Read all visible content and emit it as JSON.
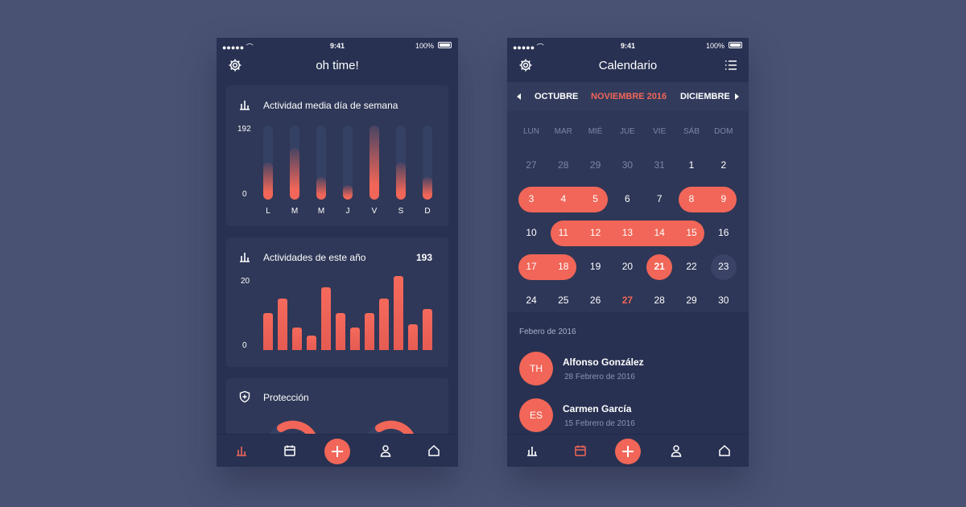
{
  "status": {
    "time": "9:41",
    "battery": "100%"
  },
  "left": {
    "title": "oh time!",
    "weekday_card": {
      "title": "Actividad media día de semana",
      "y_max": "192",
      "y_min": "0",
      "days": [
        "L",
        "M",
        "M",
        "J",
        "V",
        "S",
        "D"
      ],
      "levels": [
        0.5,
        0.7,
        0.3,
        0.2,
        1.0,
        0.5,
        0.3
      ]
    },
    "year_card": {
      "title": "Actividades de este año",
      "count": "193",
      "y_max": "20",
      "y_min": "0",
      "levels": [
        0.5,
        0.7,
        0.3,
        0.2,
        0.85,
        0.5,
        0.3,
        0.5,
        0.7,
        1.0,
        0.35,
        0.55
      ]
    },
    "protection_card": {
      "title": "Protección"
    }
  },
  "right": {
    "title": "Calendario",
    "months": {
      "prev": "OCTUBRE",
      "current": "NOVIEMBRE 2016",
      "next": "DICIEMBRE"
    },
    "weekdays": [
      "LUN",
      "MAR",
      "MIÉ",
      "JUE",
      "VIE",
      "SÁB",
      "DOM"
    ],
    "weeks": [
      [
        "27",
        "28",
        "29",
        "30",
        "31",
        "1",
        "2"
      ],
      [
        "3",
        "4",
        "5",
        "6",
        "7",
        "8",
        "9"
      ],
      [
        "10",
        "11",
        "12",
        "13",
        "14",
        "15",
        "16"
      ],
      [
        "17",
        "18",
        "19",
        "20",
        "21",
        "22",
        "23"
      ],
      [
        "24",
        "25",
        "26",
        "27",
        "28",
        "29",
        "30"
      ]
    ],
    "section_label": "Febero de 2016",
    "contacts": [
      {
        "initials": "TH",
        "name": "Alfonso González",
        "date": "28 Febrero de 2016"
      },
      {
        "initials": "ES",
        "name": "Carmen García",
        "date": "15 Febrero de 2016"
      }
    ]
  },
  "colors": {
    "background": "#4a5274",
    "panel": "#283152",
    "card": "#2f3858",
    "accent": "#f16658",
    "muted_text": "#7e86a6"
  },
  "icons": {
    "settings": "gear-icon",
    "menu": "list-icon",
    "stats": "bar-chart-icon",
    "calendar": "calendar-icon",
    "add": "plus-icon",
    "profile": "user-icon",
    "home": "home-icon",
    "shield": "shield-icon"
  }
}
